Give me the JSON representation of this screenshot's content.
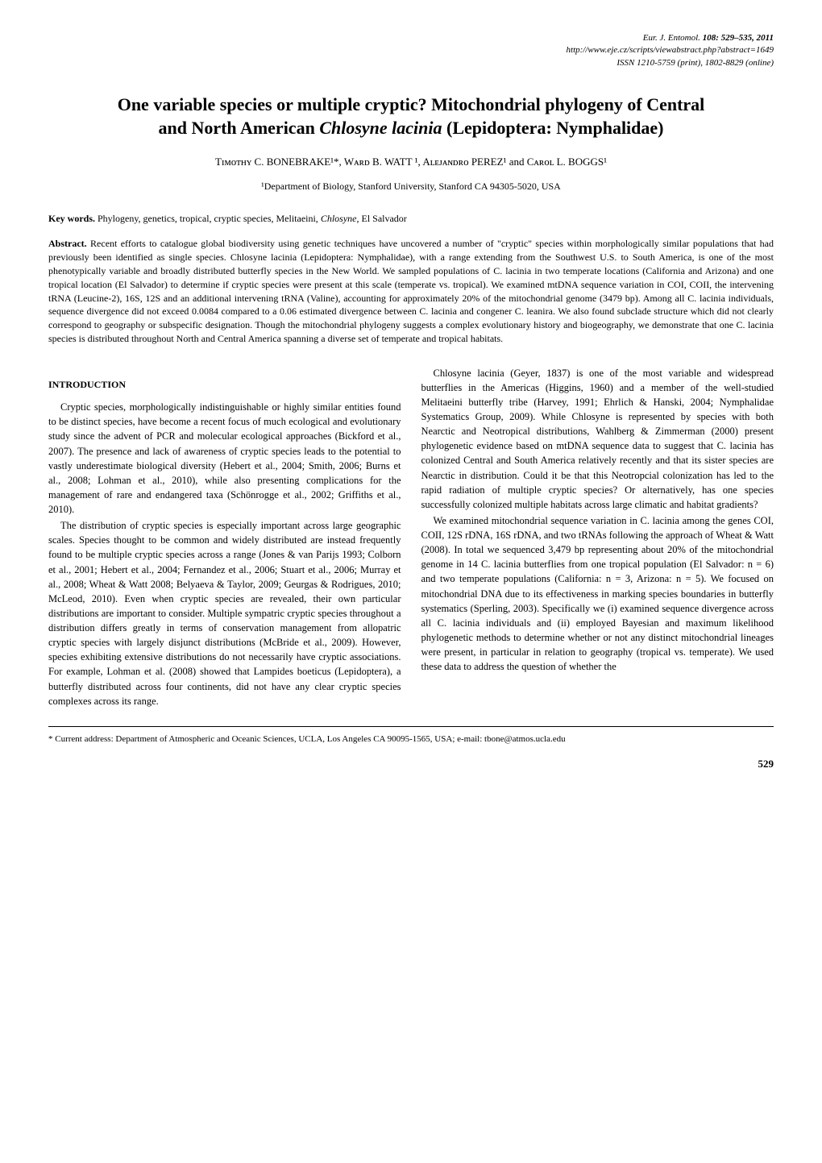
{
  "header": {
    "journal": "Eur. J. Entomol.",
    "vol_pages": "108: 529–535, 2011",
    "url": "http://www.eje.cz/scripts/viewabstract.php?abstract=1649",
    "issn": "ISSN 1210-5759 (print), 1802-8829 (online)"
  },
  "title": {
    "line1": "One variable species or multiple cryptic? Mitochondrial phylogeny of Central",
    "line2_pre": "and North American ",
    "line2_italic": "Chlosyne lacinia",
    "line2_post": " (Lepidoptera: Nymphalidae)"
  },
  "authors": "Tɪᴍᴏᴛʜʏ C. BONEBRAKE¹*, Wᴀʀᴅ B. WATT ¹, Aʟᴇᴊᴀɴᴅʀᴏ PEREZ¹ and Cᴀʀᴏʟ L. BOGGS¹",
  "affiliation": "¹Department of Biology, Stanford University, Stanford CA 94305-5020, USA",
  "keywords": {
    "label": "Key words.",
    "text_pre": " Phylogeny, genetics, tropical, cryptic species, Melitaeini, ",
    "text_italic": "Chlosyne",
    "text_post": ", El Salvador"
  },
  "abstract": {
    "label": "Abstract.",
    "text": " Recent efforts to catalogue global biodiversity using genetic techniques have uncovered a number of \"cryptic\" species within morphologically similar populations that had previously been identified as single species. Chlosyne lacinia (Lepidoptera: Nymphalidae), with a range extending from the Southwest U.S. to South America, is one of the most phenotypically variable and broadly distributed butterfly species in the New World. We sampled populations of C. lacinia in two temperate locations (California and Arizona) and one tropical location (El Salvador) to determine if cryptic species were present at this scale (temperate vs. tropical). We examined mtDNA sequence variation in COI, COII, the intervening tRNA (Leucine-2), 16S, 12S and an additional intervening tRNA (Valine), accounting for approximately 20% of the mitochondrial genome (3479 bp). Among all C. lacinia individuals, sequence divergence did not exceed 0.0084 compared to a 0.06 estimated divergence between C. lacinia and congener C. leanira. We also found subclade structure which did not clearly correspond to geography or subspecific designation. Though the mitochondrial phylogeny suggests a complex evolutionary history and biogeography, we demonstrate that one C. lacinia species is distributed throughout North and Central America spanning a diverse set of temperate and tropical habitats."
  },
  "section_heading": "INTRODUCTION",
  "left_column": {
    "p1": "Cryptic species, morphologically indistinguishable or highly similar entities found to be distinct species, have become a recent focus of much ecological and evolutionary study since the advent of PCR and molecular ecological approaches (Bickford et al., 2007). The presence and lack of awareness of cryptic species leads to the potential to vastly underestimate biological diversity (Hebert et al., 2004; Smith, 2006; Burns et al., 2008; Lohman et al., 2010), while also presenting complications for the management of rare and endangered taxa (Schönrogge et al., 2002; Griffiths et al., 2010).",
    "p2": "The distribution of cryptic species is especially important across large geographic scales. Species thought to be common and widely distributed are instead frequently found to be multiple cryptic species across a range (Jones & van Parijs 1993; Colborn et al., 2001; Hebert et al., 2004; Fernandez et al., 2006; Stuart et al., 2006; Murray et al., 2008; Wheat & Watt 2008; Belyaeva & Taylor, 2009; Geurgas & Rodrigues, 2010; McLeod, 2010). Even when cryptic species are revealed, their own particular distributions are important to consider. Multiple sympatric cryptic species throughout a distribution differs greatly in terms of conservation management from allopatric cryptic species with largely disjunct distributions (McBride et al., 2009). However, species exhibiting extensive distributions do not necessarily have cryptic associations. For example, Lohman et al. (2008) showed that Lampides boeticus (Lepidoptera), a butterfly distributed across four continents, did not have any clear cryptic species complexes across its range."
  },
  "right_column": {
    "p1": "Chlosyne lacinia (Geyer, 1837) is one of the most variable and widespread butterflies in the Americas (Higgins, 1960) and a member of the well-studied Melitaeini butterfly tribe (Harvey, 1991; Ehrlich & Hanski, 2004; Nymphalidae Systematics Group, 2009). While Chlosyne is represented by species with both Nearctic and Neotropical distributions, Wahlberg & Zimmerman (2000) present phylogenetic evidence based on mtDNA sequence data to suggest that C. lacinia has colonized Central and South America relatively recently and that its sister species are Nearctic in distribution. Could it be that this Neotropcial colonization has led to the rapid radiation of multiple cryptic species? Or alternatively, has one species successfully colonized multiple habitats across large climatic and habitat gradients?",
    "p2": "We examined mitochondrial sequence variation in C. lacinia among the genes COI, COII, 12S rDNA, 16S rDNA, and two tRNAs following the approach of Wheat & Watt (2008). In total we sequenced 3,479 bp representing about 20% of the mitochondrial genome in 14 C. lacinia butterflies from one tropical population (El Salvador: n = 6) and two temperate populations (California: n = 3, Arizona: n = 5). We focused on mitochondrial DNA due to its effectiveness in marking species boundaries in butterfly systematics (Sperling, 2003). Specifically we (i) examined sequence divergence across all C. lacinia individuals and (ii) employed Bayesian and maximum likelihood phylogenetic methods to determine whether or not any distinct mitochondrial lineages were present, in particular in relation to geography (tropical vs. temperate). We used these data to address the question of whether the"
  },
  "footnote": "* Current address: Department of Atmospheric and Oceanic Sciences, UCLA, Los Angeles CA 90095-1565, USA; e-mail: tbone@atmos.ucla.edu",
  "page_number": "529"
}
